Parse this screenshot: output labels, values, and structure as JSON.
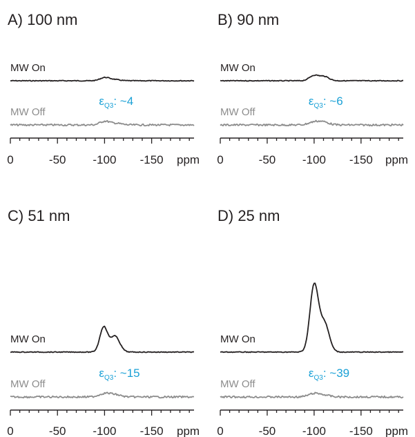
{
  "colors": {
    "on": "#231f20",
    "off": "#8c8c8c",
    "accent": "#1ba1d6"
  },
  "chart_data": [
    {
      "type": "line",
      "title": "A) 100 nm",
      "xlabel": "ppm",
      "xlim": [
        0,
        -195
      ],
      "xticks": [
        "0",
        "-50",
        "-100",
        "-150"
      ],
      "annotation": {
        "symbol": "ε",
        "sub": "Q3",
        "text": ": ~4"
      },
      "series": [
        {
          "name": "MW On",
          "peaks": [
            {
              "x": [
                -100,
                0.55
              ],
              "w": 5
            },
            {
              "x": [
                -110,
                0.22
              ],
              "w": 6
            }
          ]
        },
        {
          "name": "MW Off",
          "peaks": [
            {
              "x": [
                -100,
                0.65
              ],
              "w": 5
            },
            {
              "x": [
                -112,
                0.3
              ],
              "w": 6
            }
          ]
        }
      ]
    },
    {
      "type": "line",
      "title": "B) 90 nm",
      "xlabel": "ppm",
      "xlim": [
        0,
        -195
      ],
      "xticks": [
        "0",
        "-50",
        "-100",
        "-150"
      ],
      "annotation": {
        "symbol": "ε",
        "sub": "Q3",
        "text": ": ~6"
      },
      "series": [
        {
          "name": "MW On",
          "peaks": [
            {
              "x": [
                -100,
                0.95
              ],
              "w": 5
            },
            {
              "x": [
                -111,
                0.75
              ],
              "w": 5
            }
          ]
        },
        {
          "name": "MW Off",
          "peaks": [
            {
              "x": [
                -100,
                0.5
              ],
              "w": 6
            },
            {
              "x": [
                -110,
                0.5
              ],
              "w": 6
            }
          ]
        }
      ]
    },
    {
      "type": "line",
      "title": "C) 51 nm",
      "xlabel": "ppm",
      "xlim": [
        0,
        -195
      ],
      "xticks": [
        "0",
        "-50",
        "-100",
        "-150"
      ],
      "annotation": {
        "symbol": "ε",
        "sub": "Q3",
        "text": ": ~15"
      },
      "series": [
        {
          "name": "MW On",
          "peaks": [
            {
              "x": [
                -99,
                4.5
              ],
              "w": 4
            },
            {
              "x": [
                -111,
                2.9
              ],
              "w": 5
            }
          ]
        },
        {
          "name": "MW Off",
          "peaks": [
            {
              "x": [
                -100,
                0.6
              ],
              "w": 6
            },
            {
              "x": [
                -111,
                0.4
              ],
              "w": 6
            }
          ]
        }
      ]
    },
    {
      "type": "line",
      "title": "D) 25 nm",
      "xlabel": "ppm",
      "xlim": [
        0,
        -195
      ],
      "xticks": [
        "0",
        "-50",
        "-100",
        "-150"
      ],
      "annotation": {
        "symbol": "ε",
        "sub": "Q3",
        "text": ": ~39"
      },
      "series": [
        {
          "name": "MW On",
          "peaks": [
            {
              "x": [
                -100,
                12.0
              ],
              "w": 4.5
            },
            {
              "x": [
                -111,
                5.2
              ],
              "w": 5
            }
          ]
        },
        {
          "name": "MW Off",
          "peaks": [
            {
              "x": [
                -100,
                0.6
              ],
              "w": 6
            },
            {
              "x": [
                -111,
                0.3
              ],
              "w": 6
            }
          ]
        }
      ]
    }
  ]
}
